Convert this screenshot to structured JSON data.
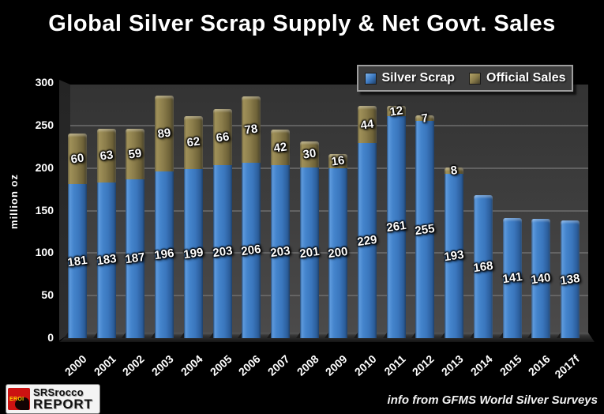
{
  "title": "Global Silver Scrap Supply & Net Govt. Sales",
  "y_axis_label": "million oz",
  "legend": {
    "items": [
      {
        "label": "Silver Scrap",
        "color": "#3f7cc4",
        "marker_light": "#7eb3e8",
        "marker_dark": "#1f4068"
      },
      {
        "label": "Official Sales",
        "color": "#8b7d4b",
        "marker_light": "#b3a469",
        "marker_dark": "#46402a"
      }
    ]
  },
  "footer": {
    "logo_badge": "EROI",
    "logo_line1": "SRSrocco",
    "logo_line2": "REPORT",
    "credit": "info from GFMS World Silver Surveys"
  },
  "colors": {
    "background": "#000000",
    "plot_wall": "#3d3d3d",
    "gridline": "#6f6f6f",
    "silver_scrap": "#3f7cc4",
    "official_sales": "#8b7d4b",
    "text": "#ffffff"
  },
  "chart_data": {
    "type": "bar",
    "stacked": true,
    "title": "Global Silver Scrap Supply & Net Govt. Sales",
    "ylabel": "million oz",
    "ylim": [
      0,
      300
    ],
    "yticks": [
      0,
      50,
      100,
      150,
      200,
      250,
      300
    ],
    "grid": true,
    "legend_position": "top-right",
    "categories": [
      "2000",
      "2001",
      "2002",
      "2003",
      "2004",
      "2005",
      "2006",
      "2007",
      "2008",
      "2009",
      "2010",
      "2011",
      "2012",
      "2013",
      "2014",
      "2015",
      "2016",
      "2017f"
    ],
    "series": [
      {
        "name": "Silver Scrap",
        "color": "#3f7cc4",
        "values": [
          181,
          183,
          187,
          196,
          199,
          203,
          206,
          203,
          201,
          200,
          229,
          261,
          255,
          193,
          168,
          141,
          140,
          138
        ]
      },
      {
        "name": "Official Sales",
        "color": "#8b7d4b",
        "values": [
          60,
          63,
          59,
          89,
          62,
          66,
          78,
          42,
          30,
          16,
          44,
          12,
          7,
          8,
          0,
          0,
          0,
          0
        ]
      }
    ],
    "annotation": "info from GFMS World Silver Surveys"
  }
}
